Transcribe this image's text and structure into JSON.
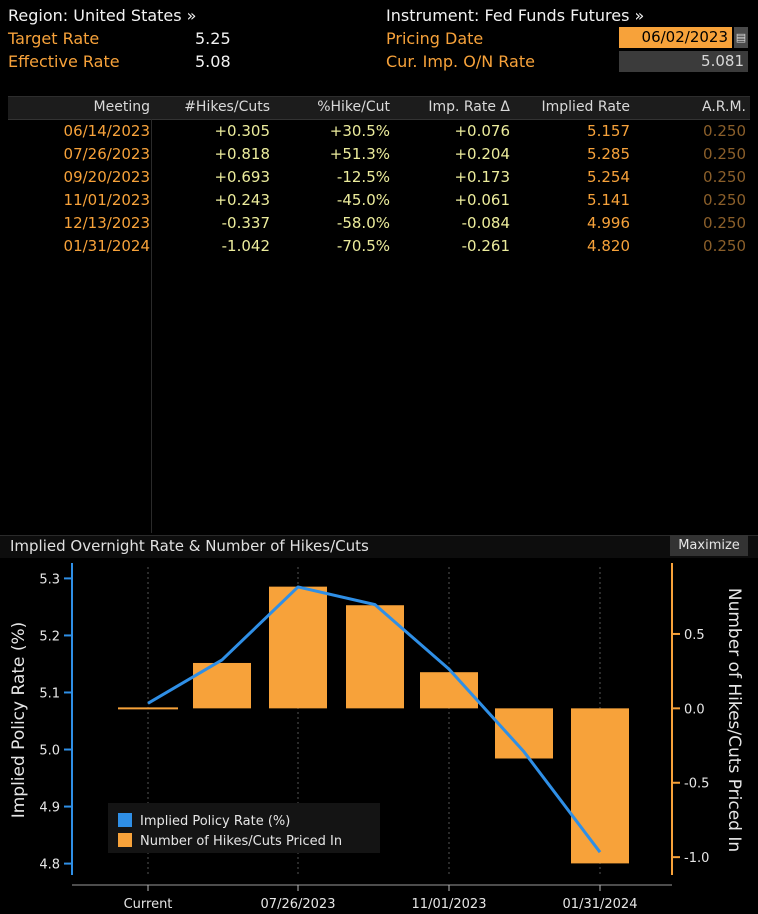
{
  "header": {
    "region_label": "Region: United States »",
    "instrument_label": "Instrument: Fed Funds Futures »",
    "target_rate_label": "Target Rate",
    "target_rate_value": "5.25",
    "effective_rate_label": "Effective Rate",
    "effective_rate_value": "5.08",
    "pricing_date_label": "Pricing Date",
    "pricing_date_value": "06/02/2023",
    "cur_imp_label": "Cur. Imp. O/N Rate",
    "cur_imp_value": "5.081"
  },
  "table": {
    "columns": [
      "Meeting",
      "#Hikes/Cuts",
      "%Hike/Cut",
      "Imp. Rate Δ",
      "Implied Rate",
      "A.R.M."
    ],
    "rows": [
      [
        "06/14/2023",
        "+0.305",
        "+30.5%",
        "+0.076",
        "5.157",
        "0.250"
      ],
      [
        "07/26/2023",
        "+0.818",
        "+51.3%",
        "+0.204",
        "5.285",
        "0.250"
      ],
      [
        "09/20/2023",
        "+0.693",
        "-12.5%",
        "+0.173",
        "5.254",
        "0.250"
      ],
      [
        "11/01/2023",
        "+0.243",
        "-45.0%",
        "+0.061",
        "5.141",
        "0.250"
      ],
      [
        "12/13/2023",
        "-0.337",
        "-58.0%",
        "-0.084",
        "4.996",
        "0.250"
      ],
      [
        "01/31/2024",
        "-1.042",
        "-70.5%",
        "-0.261",
        "4.820",
        "0.250"
      ]
    ]
  },
  "chart_panel": {
    "title": "Implied Overnight Rate & Number of Hikes/Cuts",
    "maximize_label": "Maximize"
  },
  "chart_data": {
    "type": "bar",
    "title": "Implied Overnight Rate & Number of Hikes/Cuts",
    "categories": [
      "Current",
      "06/14/2023",
      "07/26/2023",
      "09/20/2023",
      "11/01/2023",
      "12/13/2023",
      "01/31/2024"
    ],
    "x_tick_labels": [
      "Current",
      "07/26/2023",
      "11/01/2023",
      "01/31/2024"
    ],
    "series": [
      {
        "name": "Implied Policy Rate (%)",
        "type": "line",
        "axis": "left",
        "color": "#2f8fe6",
        "values": [
          5.081,
          5.157,
          5.285,
          5.254,
          5.141,
          4.996,
          4.82
        ]
      },
      {
        "name": "Number of Hikes/Cuts Priced In",
        "type": "bar",
        "axis": "right",
        "color": "#f7a23a",
        "values": [
          0.0,
          0.305,
          0.818,
          0.693,
          0.243,
          -0.337,
          -1.042
        ]
      }
    ],
    "left_axis": {
      "label": "Implied Policy Rate (%)",
      "ticks": [
        "4.8",
        "4.9",
        "5.0",
        "5.1",
        "5.2",
        "5.3"
      ],
      "range": [
        4.78,
        5.32
      ]
    },
    "right_axis": {
      "label": "Number of Hikes/Cuts Priced In",
      "ticks": [
        "-1.0",
        "-0.5",
        "0.0",
        "0.5"
      ],
      "range": [
        -1.12,
        0.95
      ]
    },
    "legend": [
      "Implied Policy Rate (%)",
      "Number of Hikes/Cuts Priced In"
    ],
    "legend_position": "bottom-left"
  }
}
